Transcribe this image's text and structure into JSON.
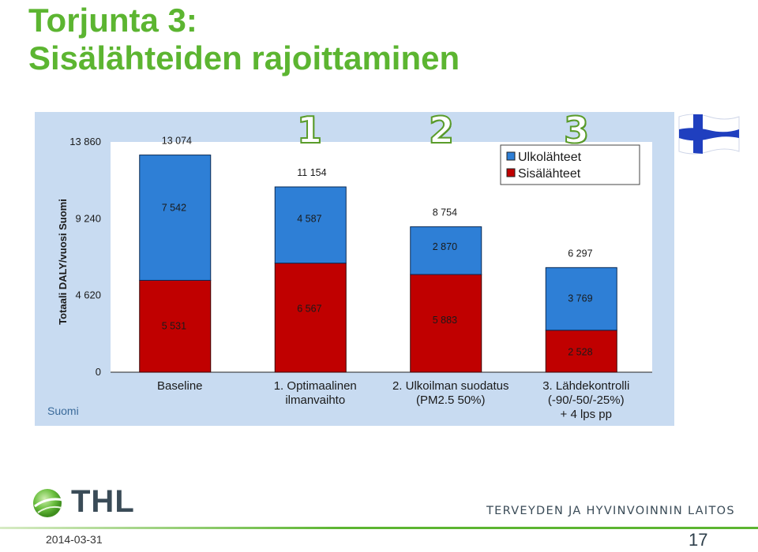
{
  "slide": {
    "title_line1": "Torjunta 3:",
    "title_line2": "Sisälähteiden rajoittaminen",
    "date": "2014-03-31",
    "page_number": "17",
    "logo_text": "THL",
    "org_name": "TERVEYDEN JA HYVINVOINNIN LAITOS",
    "step_numbers": [
      "1",
      "2",
      "3"
    ]
  },
  "colors": {
    "title_green": "#5cb531",
    "chart_background": "#c8dbf1",
    "plot_background": "#ffffff",
    "outdoor_blue": "#2e7fd6",
    "indoor_red": "#c00000",
    "flag_blue": "#1f3fbf"
  },
  "chart_data": {
    "type": "bar",
    "stacked": true,
    "categories": [
      [
        "Baseline"
      ],
      [
        "1. Optimaalinen",
        "ilmanvaihto"
      ],
      [
        "2. Ulkoilman suodatus",
        "(PM2.5 50%)"
      ],
      [
        "3. Lähdekontrolli",
        "(-90/-50/-25%)",
        "+ 4 lps pp"
      ]
    ],
    "series": [
      {
        "name": "Sisälähteet",
        "color": "#c00000",
        "values": [
          5531,
          6567,
          5883,
          2528
        ],
        "labels": [
          "5 531",
          "6 567",
          "5 883",
          "2 528"
        ]
      },
      {
        "name": "Ulkolähteet",
        "color": "#2e7fd6",
        "values": [
          7542,
          4587,
          2870,
          3769
        ],
        "labels": [
          "7 542",
          "4 587",
          "2 870",
          "3 769"
        ]
      }
    ],
    "totals": [
      13074,
      11154,
      8754,
      6297
    ],
    "total_labels": [
      "13 074",
      "11 154",
      "8 754",
      "6 297"
    ],
    "ylabel": "Totaali DALY/vuosi Suomi",
    "xlabel": "Suomi",
    "ylim": [
      0,
      13860
    ],
    "yticks": [
      0,
      4620,
      9240,
      13860
    ],
    "ytick_labels": [
      "0",
      "4 620",
      "9 240",
      "13 860"
    ],
    "legend": [
      "Ulkolähteet",
      "Sisälähteet"
    ],
    "legend_position": "top-right",
    "grid": false
  }
}
